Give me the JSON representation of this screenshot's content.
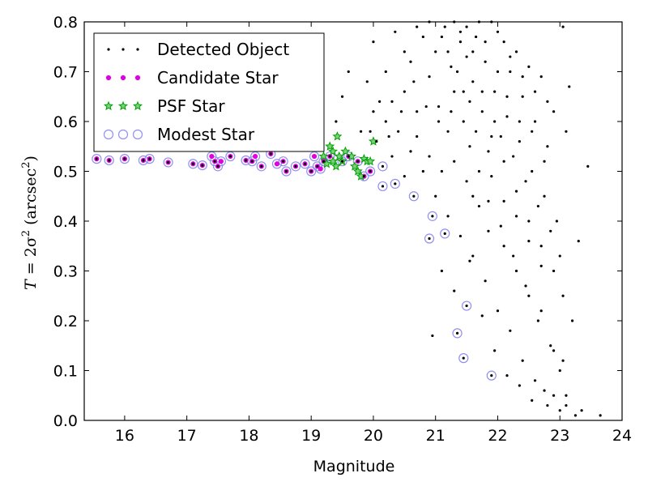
{
  "chart_data": {
    "type": "scatter",
    "xlabel": "Magnitude",
    "ylabel": "T = 2σ² (arcsec²)",
    "ylabel_parts": {
      "lhs": "T",
      "eq": " = 2σ",
      "sup1": "2",
      "unit": " (arcsec",
      "sup2": "2",
      "close": ")"
    },
    "xlim": [
      15.35,
      24.0
    ],
    "ylim": [
      0.0,
      0.8
    ],
    "xticks": [
      "16",
      "17",
      "18",
      "19",
      "20",
      "21",
      "22",
      "23",
      "24"
    ],
    "yticks": [
      "0.0",
      "0.1",
      "0.2",
      "0.3",
      "0.4",
      "0.5",
      "0.6",
      "0.7",
      "0.8"
    ],
    "grid": false,
    "legend_position": "upper-left",
    "series": [
      {
        "name": "Detected Object",
        "color": "#000000",
        "marker": "dot",
        "points": [
          [
            15.55,
            0.525
          ],
          [
            15.75,
            0.522
          ],
          [
            16.0,
            0.525
          ],
          [
            16.3,
            0.522
          ],
          [
            16.4,
            0.525
          ],
          [
            16.7,
            0.518
          ],
          [
            17.1,
            0.515
          ],
          [
            17.25,
            0.512
          ],
          [
            17.45,
            0.52
          ],
          [
            17.5,
            0.51
          ],
          [
            17.7,
            0.53
          ],
          [
            17.95,
            0.522
          ],
          [
            18.05,
            0.52
          ],
          [
            18.2,
            0.51
          ],
          [
            18.35,
            0.535
          ],
          [
            18.55,
            0.52
          ],
          [
            18.6,
            0.5
          ],
          [
            18.75,
            0.51
          ],
          [
            18.9,
            0.515
          ],
          [
            19.0,
            0.5
          ],
          [
            19.1,
            0.51
          ],
          [
            19.2,
            0.52
          ],
          [
            19.3,
            0.53
          ],
          [
            19.5,
            0.52
          ],
          [
            19.6,
            0.53
          ],
          [
            19.75,
            0.52
          ],
          [
            19.85,
            0.49
          ],
          [
            19.95,
            0.5
          ],
          [
            20.15,
            0.51
          ],
          [
            20.15,
            0.47
          ],
          [
            20.35,
            0.475
          ],
          [
            20.65,
            0.45
          ],
          [
            20.95,
            0.41
          ],
          [
            20.9,
            0.365
          ],
          [
            21.15,
            0.375
          ],
          [
            21.5,
            0.23
          ],
          [
            21.35,
            0.175
          ],
          [
            21.45,
            0.125
          ],
          [
            21.9,
            0.09
          ],
          [
            19.4,
            0.6
          ],
          [
            19.5,
            0.65
          ],
          [
            19.6,
            0.7
          ],
          [
            19.95,
            0.58
          ],
          [
            20.05,
            0.56
          ],
          [
            20.2,
            0.7
          ],
          [
            20.35,
            0.78
          ],
          [
            20.5,
            0.66
          ],
          [
            20.6,
            0.72
          ],
          [
            20.7,
            0.62
          ],
          [
            20.8,
            0.77
          ],
          [
            20.9,
            0.69
          ],
          [
            21.0,
            0.74
          ],
          [
            21.05,
            0.63
          ],
          [
            21.15,
            0.79
          ],
          [
            21.2,
            0.58
          ],
          [
            21.25,
            0.71
          ],
          [
            21.3,
            0.66
          ],
          [
            21.4,
            0.76
          ],
          [
            21.45,
            0.6
          ],
          [
            21.5,
            0.73
          ],
          [
            21.55,
            0.55
          ],
          [
            21.6,
            0.68
          ],
          [
            21.65,
            0.77
          ],
          [
            21.7,
            0.5
          ],
          [
            21.75,
            0.62
          ],
          [
            21.8,
            0.72
          ],
          [
            21.85,
            0.44
          ],
          [
            21.9,
            0.57
          ],
          [
            21.95,
            0.66
          ],
          [
            22.0,
            0.78
          ],
          [
            22.05,
            0.39
          ],
          [
            22.1,
            0.52
          ],
          [
            22.15,
            0.61
          ],
          [
            22.2,
            0.7
          ],
          [
            22.25,
            0.33
          ],
          [
            22.3,
            0.46
          ],
          [
            22.35,
            0.56
          ],
          [
            22.4,
            0.65
          ],
          [
            22.45,
            0.27
          ],
          [
            22.5,
            0.4
          ],
          [
            22.55,
            0.5
          ],
          [
            22.6,
            0.6
          ],
          [
            22.65,
            0.2
          ],
          [
            22.7,
            0.35
          ],
          [
            22.75,
            0.45
          ],
          [
            22.8,
            0.55
          ],
          [
            22.85,
            0.15
          ],
          [
            22.9,
            0.3
          ],
          [
            22.95,
            0.4
          ],
          [
            23.0,
            0.1
          ],
          [
            23.05,
            0.25
          ],
          [
            23.1,
            0.05
          ],
          [
            23.15,
            0.67
          ],
          [
            23.2,
            0.2
          ],
          [
            23.3,
            0.36
          ],
          [
            23.35,
            0.02
          ],
          [
            23.45,
            0.51
          ],
          [
            23.65,
            0.01
          ],
          [
            22.6,
            0.08
          ],
          [
            22.8,
            0.03
          ],
          [
            22.9,
            0.05
          ],
          [
            23.0,
            0.02
          ],
          [
            22.4,
            0.12
          ],
          [
            22.2,
            0.18
          ],
          [
            22.0,
            0.22
          ],
          [
            21.8,
            0.28
          ],
          [
            21.6,
            0.33
          ],
          [
            21.4,
            0.37
          ],
          [
            21.2,
            0.41
          ],
          [
            21.0,
            0.45
          ],
          [
            20.8,
            0.5
          ],
          [
            20.6,
            0.54
          ],
          [
            20.4,
            0.58
          ],
          [
            20.2,
            0.6
          ],
          [
            20.0,
            0.62
          ],
          [
            19.8,
            0.58
          ],
          [
            20.95,
            0.17
          ],
          [
            21.1,
            0.3
          ],
          [
            21.3,
            0.26
          ],
          [
            21.55,
            0.32
          ],
          [
            21.75,
            0.21
          ],
          [
            21.95,
            0.14
          ],
          [
            22.15,
            0.09
          ],
          [
            22.35,
            0.07
          ],
          [
            22.55,
            0.04
          ],
          [
            22.75,
            0.06
          ],
          [
            23.1,
            0.03
          ],
          [
            23.25,
            0.01
          ],
          [
            21.6,
            0.45
          ],
          [
            21.85,
            0.38
          ],
          [
            22.1,
            0.35
          ],
          [
            22.3,
            0.3
          ],
          [
            22.5,
            0.25
          ],
          [
            22.7,
            0.22
          ],
          [
            22.9,
            0.14
          ],
          [
            23.05,
            0.12
          ],
          [
            21.3,
            0.52
          ],
          [
            21.5,
            0.48
          ],
          [
            21.7,
            0.43
          ],
          [
            21.9,
            0.49
          ],
          [
            22.1,
            0.44
          ],
          [
            22.3,
            0.41
          ],
          [
            22.5,
            0.36
          ],
          [
            22.7,
            0.31
          ],
          [
            20.3,
            0.53
          ],
          [
            20.5,
            0.49
          ],
          [
            20.7,
            0.57
          ],
          [
            20.9,
            0.53
          ],
          [
            21.1,
            0.5
          ],
          [
            20.3,
            0.64
          ],
          [
            20.5,
            0.74
          ],
          [
            20.7,
            0.79
          ],
          [
            20.9,
            0.8
          ],
          [
            21.1,
            0.77
          ],
          [
            21.3,
            0.8
          ],
          [
            21.5,
            0.79
          ],
          [
            21.7,
            0.8
          ],
          [
            21.9,
            0.8
          ],
          [
            22.1,
            0.76
          ],
          [
            22.3,
            0.74
          ],
          [
            22.5,
            0.71
          ],
          [
            22.7,
            0.69
          ],
          [
            22.9,
            0.62
          ],
          [
            23.1,
            0.58
          ],
          [
            20.0,
            0.76
          ],
          [
            19.9,
            0.68
          ],
          [
            20.1,
            0.64
          ],
          [
            20.25,
            0.57
          ],
          [
            20.45,
            0.62
          ],
          [
            20.65,
            0.68
          ],
          [
            20.85,
            0.63
          ],
          [
            21.05,
            0.6
          ],
          [
            21.25,
            0.62
          ],
          [
            21.45,
            0.66
          ],
          [
            21.65,
            0.58
          ],
          [
            21.85,
            0.54
          ],
          [
            22.05,
            0.57
          ],
          [
            22.25,
            0.53
          ],
          [
            22.45,
            0.48
          ],
          [
            22.65,
            0.43
          ],
          [
            22.85,
            0.38
          ],
          [
            23.0,
            0.33
          ],
          [
            21.35,
            0.7
          ],
          [
            21.55,
            0.64
          ],
          [
            21.75,
            0.66
          ],
          [
            21.95,
            0.6
          ],
          [
            22.15,
            0.65
          ],
          [
            22.35,
            0.6
          ],
          [
            22.55,
            0.58
          ],
          [
            22.75,
            0.52
          ],
          [
            21.2,
            0.74
          ],
          [
            21.4,
            0.78
          ],
          [
            21.6,
            0.74
          ],
          [
            21.8,
            0.76
          ],
          [
            22.0,
            0.7
          ],
          [
            22.2,
            0.73
          ],
          [
            22.4,
            0.69
          ],
          [
            22.6,
            0.66
          ],
          [
            22.8,
            0.64
          ],
          [
            23.05,
            0.79
          ]
        ]
      },
      {
        "name": "Candidate Star",
        "color": "#e000e0",
        "marker": "small-circle",
        "points": [
          [
            15.55,
            0.525
          ],
          [
            15.75,
            0.522
          ],
          [
            16.0,
            0.525
          ],
          [
            16.3,
            0.522
          ],
          [
            16.4,
            0.525
          ],
          [
            16.7,
            0.518
          ],
          [
            17.1,
            0.515
          ],
          [
            17.25,
            0.512
          ],
          [
            17.45,
            0.52
          ],
          [
            17.5,
            0.51
          ],
          [
            17.7,
            0.53
          ],
          [
            17.95,
            0.522
          ],
          [
            18.05,
            0.52
          ],
          [
            18.2,
            0.51
          ],
          [
            18.35,
            0.535
          ],
          [
            18.55,
            0.52
          ],
          [
            18.6,
            0.5
          ],
          [
            18.75,
            0.51
          ],
          [
            18.9,
            0.515
          ],
          [
            19.0,
            0.5
          ],
          [
            19.1,
            0.51
          ],
          [
            19.2,
            0.52
          ],
          [
            19.3,
            0.53
          ],
          [
            19.5,
            0.52
          ],
          [
            19.6,
            0.53
          ],
          [
            19.75,
            0.52
          ],
          [
            19.85,
            0.49
          ],
          [
            19.95,
            0.5
          ],
          [
            17.4,
            0.53
          ],
          [
            17.55,
            0.52
          ],
          [
            18.1,
            0.53
          ],
          [
            18.45,
            0.515
          ],
          [
            19.15,
            0.505
          ],
          [
            19.05,
            0.53
          ]
        ]
      },
      {
        "name": "PSF Star",
        "color": "#00a000",
        "marker": "star",
        "points": [
          [
            19.2,
            0.53
          ],
          [
            19.25,
            0.515
          ],
          [
            19.3,
            0.55
          ],
          [
            19.35,
            0.52
          ],
          [
            19.4,
            0.51
          ],
          [
            19.42,
            0.57
          ],
          [
            19.45,
            0.53
          ],
          [
            19.5,
            0.52
          ],
          [
            19.55,
            0.54
          ],
          [
            19.65,
            0.53
          ],
          [
            19.7,
            0.51
          ],
          [
            19.75,
            0.5
          ],
          [
            19.8,
            0.49
          ],
          [
            19.85,
            0.525
          ],
          [
            19.9,
            0.52
          ],
          [
            19.95,
            0.52
          ],
          [
            20.0,
            0.56
          ],
          [
            19.35,
            0.54
          ]
        ]
      },
      {
        "name": "Modest Star",
        "color": "#9090f0",
        "marker": "open-circle",
        "points": [
          [
            15.55,
            0.525
          ],
          [
            15.75,
            0.522
          ],
          [
            16.0,
            0.525
          ],
          [
            16.3,
            0.522
          ],
          [
            16.4,
            0.525
          ],
          [
            16.7,
            0.518
          ],
          [
            17.1,
            0.515
          ],
          [
            17.25,
            0.512
          ],
          [
            17.45,
            0.52
          ],
          [
            17.5,
            0.51
          ],
          [
            17.7,
            0.53
          ],
          [
            17.95,
            0.522
          ],
          [
            18.05,
            0.52
          ],
          [
            18.2,
            0.51
          ],
          [
            18.35,
            0.535
          ],
          [
            18.55,
            0.52
          ],
          [
            18.6,
            0.5
          ],
          [
            18.75,
            0.51
          ],
          [
            18.9,
            0.515
          ],
          [
            19.0,
            0.5
          ],
          [
            19.1,
            0.51
          ],
          [
            19.2,
            0.52
          ],
          [
            19.3,
            0.53
          ],
          [
            19.5,
            0.52
          ],
          [
            19.6,
            0.53
          ],
          [
            19.75,
            0.52
          ],
          [
            19.85,
            0.49
          ],
          [
            19.95,
            0.5
          ],
          [
            20.15,
            0.51
          ],
          [
            20.15,
            0.47
          ],
          [
            20.35,
            0.475
          ],
          [
            20.65,
            0.45
          ],
          [
            20.95,
            0.41
          ],
          [
            20.9,
            0.365
          ],
          [
            21.15,
            0.375
          ],
          [
            21.5,
            0.23
          ],
          [
            21.35,
            0.175
          ],
          [
            21.45,
            0.125
          ],
          [
            21.9,
            0.09
          ],
          [
            17.4,
            0.53
          ],
          [
            17.55,
            0.52
          ],
          [
            18.1,
            0.53
          ],
          [
            18.45,
            0.515
          ],
          [
            19.15,
            0.505
          ],
          [
            19.05,
            0.53
          ]
        ]
      }
    ]
  }
}
